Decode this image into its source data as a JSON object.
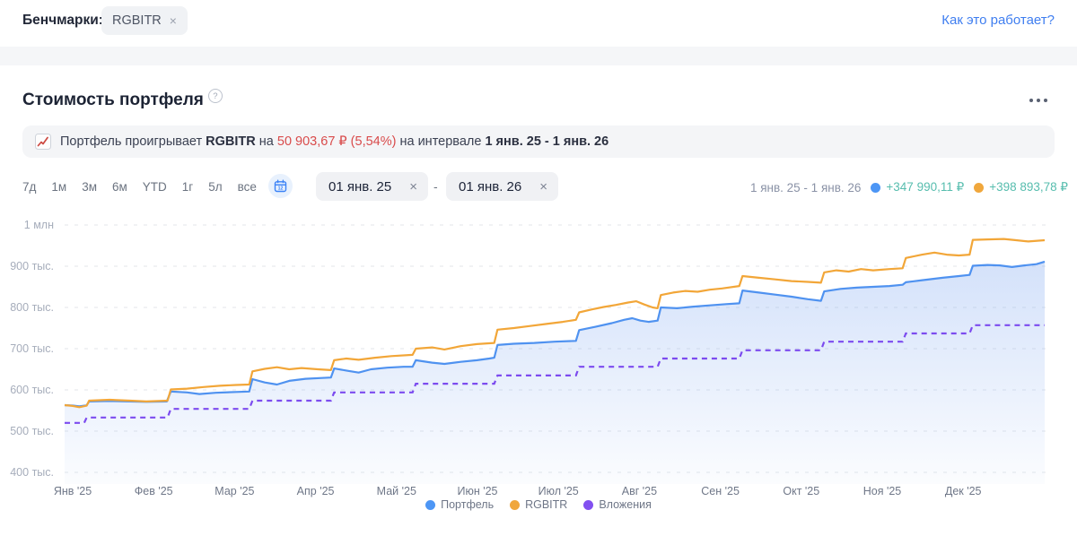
{
  "header": {
    "benchmarks_label": "Бенчмарки:",
    "benchmark_chip": "RGBITR",
    "close_glyph": "×",
    "help_link": "Как это работает?"
  },
  "section": {
    "title": "Стоимость портфеля",
    "help_icon_glyph": "?"
  },
  "banner": {
    "icon": "chart-line-down-icon",
    "parts": [
      {
        "text": "Портфель проигрывает ",
        "style": "normal"
      },
      {
        "text": "RGBITR",
        "style": "bold"
      },
      {
        "text": " на ",
        "style": "normal"
      },
      {
        "text": "50 903,67 ₽ (5,54%)",
        "style": "loss"
      },
      {
        "text": " на интервале ",
        "style": "normal"
      },
      {
        "text": "1 янв. 25 - 1 янв. 26",
        "style": "bold"
      }
    ]
  },
  "controls": {
    "presets": [
      {
        "key": "7d",
        "label": "7д"
      },
      {
        "key": "1m",
        "label": "1м"
      },
      {
        "key": "3m",
        "label": "3м"
      },
      {
        "key": "6m",
        "label": "6м"
      },
      {
        "key": "ytd",
        "label": "YTD"
      },
      {
        "key": "1y",
        "label": "1г"
      },
      {
        "key": "5y",
        "label": "5л"
      },
      {
        "key": "all",
        "label": "все"
      }
    ],
    "date_from": "01 янв. 25",
    "date_to": "01 янв. 26",
    "separator": "-"
  },
  "summary": {
    "interval": "1 янв. 25 - 1 янв. 26",
    "items": [
      {
        "key": "portfolio",
        "color": "#4d96f5",
        "value": "+347 990,11 ₽"
      },
      {
        "key": "rgbitr",
        "color": "#f0a73c",
        "value": "+398 893,78 ₽"
      }
    ]
  },
  "chart_data": {
    "type": "line",
    "title": "Стоимость портфеля",
    "x_unit": "months from 1 Jan 2025 (0 = 1 янв. 25, 12 = 1 янв. 26)",
    "value_unit": "thousands of rubles",
    "x_ticks": [
      "Янв '25",
      "Фев '25",
      "Мар '25",
      "Апр '25",
      "Май '25",
      "Июн '25",
      "Июл '25",
      "Авг '25",
      "Сен '25",
      "Окт '25",
      "Ноя '25",
      "Дек '25"
    ],
    "y_ticks": [
      "1 млн",
      "900 тыс.",
      "800 тыс.",
      "700 тыс.",
      "600 тыс.",
      "500 тыс.",
      "400 тыс."
    ],
    "y_tick_values_rub": [
      1000000,
      900000,
      800000,
      700000,
      600000,
      500000,
      400000
    ],
    "grid": "horizontal-dashed",
    "legend_position": "bottom-center",
    "series": [
      {
        "key": "portfolio",
        "name": "Портфель",
        "color": "#4f92f0",
        "style": "solid",
        "fill": true,
        "points": [
          [
            0,
            563
          ],
          [
            0.1,
            562
          ],
          [
            0.18,
            560
          ],
          [
            0.25,
            562
          ],
          [
            0.27,
            563
          ],
          [
            0.3,
            572
          ],
          [
            0.55,
            573
          ],
          [
            0.8,
            572
          ],
          [
            1.0,
            571
          ],
          [
            1.25,
            572
          ],
          [
            1.3,
            596
          ],
          [
            1.5,
            594
          ],
          [
            1.65,
            590
          ],
          [
            1.85,
            593
          ],
          [
            2.1,
            595
          ],
          [
            2.26,
            596
          ],
          [
            2.3,
            626
          ],
          [
            2.45,
            618
          ],
          [
            2.6,
            613
          ],
          [
            2.75,
            622
          ],
          [
            2.95,
            627
          ],
          [
            3.15,
            629
          ],
          [
            3.26,
            630
          ],
          [
            3.3,
            652
          ],
          [
            3.45,
            647
          ],
          [
            3.6,
            642
          ],
          [
            3.75,
            650
          ],
          [
            3.95,
            654
          ],
          [
            4.15,
            656
          ],
          [
            4.26,
            656
          ],
          [
            4.3,
            672
          ],
          [
            4.5,
            666
          ],
          [
            4.65,
            663
          ],
          [
            4.85,
            668
          ],
          [
            5.05,
            672
          ],
          [
            5.2,
            676
          ],
          [
            5.26,
            678
          ],
          [
            5.3,
            709
          ],
          [
            5.5,
            712
          ],
          [
            5.75,
            714
          ],
          [
            6.0,
            717
          ],
          [
            6.26,
            719
          ],
          [
            6.3,
            745
          ],
          [
            6.5,
            753
          ],
          [
            6.7,
            762
          ],
          [
            6.85,
            770
          ],
          [
            6.95,
            774
          ],
          [
            7.05,
            768
          ],
          [
            7.15,
            765
          ],
          [
            7.26,
            768
          ],
          [
            7.3,
            800
          ],
          [
            7.5,
            798
          ],
          [
            7.7,
            802
          ],
          [
            7.9,
            805
          ],
          [
            8.1,
            808
          ],
          [
            8.26,
            810
          ],
          [
            8.3,
            841
          ],
          [
            8.5,
            836
          ],
          [
            8.7,
            831
          ],
          [
            8.9,
            826
          ],
          [
            9.1,
            820
          ],
          [
            9.26,
            816
          ],
          [
            9.3,
            839
          ],
          [
            9.5,
            845
          ],
          [
            9.7,
            848
          ],
          [
            9.9,
            850
          ],
          [
            10.1,
            852
          ],
          [
            10.26,
            855
          ],
          [
            10.3,
            861
          ],
          [
            10.5,
            866
          ],
          [
            10.75,
            872
          ],
          [
            10.95,
            876
          ],
          [
            11.08,
            879
          ],
          [
            11.12,
            901
          ],
          [
            11.3,
            903
          ],
          [
            11.45,
            902
          ],
          [
            11.6,
            898
          ],
          [
            11.75,
            902
          ],
          [
            11.9,
            905
          ],
          [
            12,
            911
          ]
        ]
      },
      {
        "key": "rgbitr",
        "name": "RGBITR",
        "color": "#f2a638",
        "style": "solid",
        "fill": false,
        "points": [
          [
            0,
            563
          ],
          [
            0.1,
            561
          ],
          [
            0.18,
            558
          ],
          [
            0.25,
            561
          ],
          [
            0.27,
            562
          ],
          [
            0.3,
            574
          ],
          [
            0.55,
            576
          ],
          [
            0.8,
            574
          ],
          [
            1.0,
            572
          ],
          [
            1.26,
            574
          ],
          [
            1.3,
            601
          ],
          [
            1.5,
            603
          ],
          [
            1.7,
            607
          ],
          [
            1.9,
            610
          ],
          [
            2.1,
            612
          ],
          [
            2.26,
            613
          ],
          [
            2.3,
            645
          ],
          [
            2.45,
            651
          ],
          [
            2.6,
            655
          ],
          [
            2.75,
            650
          ],
          [
            2.9,
            653
          ],
          [
            3.1,
            650
          ],
          [
            3.26,
            648
          ],
          [
            3.3,
            672
          ],
          [
            3.45,
            676
          ],
          [
            3.6,
            673
          ],
          [
            3.8,
            678
          ],
          [
            4.0,
            682
          ],
          [
            4.26,
            685
          ],
          [
            4.3,
            700
          ],
          [
            4.5,
            703
          ],
          [
            4.65,
            698
          ],
          [
            4.85,
            706
          ],
          [
            5.05,
            711
          ],
          [
            5.26,
            714
          ],
          [
            5.3,
            746
          ],
          [
            5.5,
            750
          ],
          [
            5.7,
            755
          ],
          [
            5.9,
            760
          ],
          [
            6.1,
            765
          ],
          [
            6.26,
            770
          ],
          [
            6.3,
            788
          ],
          [
            6.45,
            795
          ],
          [
            6.6,
            801
          ],
          [
            6.75,
            806
          ],
          [
            6.9,
            812
          ],
          [
            7.0,
            815
          ],
          [
            7.1,
            807
          ],
          [
            7.2,
            800
          ],
          [
            7.26,
            798
          ],
          [
            7.3,
            830
          ],
          [
            7.45,
            836
          ],
          [
            7.6,
            840
          ],
          [
            7.75,
            838
          ],
          [
            7.9,
            843
          ],
          [
            8.05,
            846
          ],
          [
            8.26,
            852
          ],
          [
            8.3,
            876
          ],
          [
            8.5,
            872
          ],
          [
            8.7,
            868
          ],
          [
            8.9,
            864
          ],
          [
            9.1,
            862
          ],
          [
            9.26,
            860
          ],
          [
            9.3,
            885
          ],
          [
            9.45,
            890
          ],
          [
            9.6,
            887
          ],
          [
            9.75,
            893
          ],
          [
            9.9,
            890
          ],
          [
            10.1,
            893
          ],
          [
            10.26,
            895
          ],
          [
            10.3,
            920
          ],
          [
            10.5,
            928
          ],
          [
            10.65,
            933
          ],
          [
            10.8,
            928
          ],
          [
            10.95,
            926
          ],
          [
            11.08,
            928
          ],
          [
            11.12,
            964
          ],
          [
            11.3,
            965
          ],
          [
            11.5,
            966
          ],
          [
            11.65,
            963
          ],
          [
            11.8,
            960
          ],
          [
            12,
            963
          ]
        ]
      },
      {
        "key": "contributions",
        "name": "Вложения",
        "color": "#7c4bef",
        "style": "dashed",
        "fill": false,
        "points": [
          [
            0,
            520
          ],
          [
            0.24,
            520
          ],
          [
            0.27,
            533
          ],
          [
            1.26,
            533
          ],
          [
            1.3,
            554
          ],
          [
            2.26,
            554
          ],
          [
            2.3,
            574
          ],
          [
            3.26,
            574
          ],
          [
            3.3,
            594
          ],
          [
            4.26,
            594
          ],
          [
            4.3,
            615
          ],
          [
            5.26,
            615
          ],
          [
            5.3,
            635
          ],
          [
            6.26,
            635
          ],
          [
            6.3,
            656
          ],
          [
            7.26,
            656
          ],
          [
            7.3,
            676
          ],
          [
            8.26,
            676
          ],
          [
            8.3,
            696
          ],
          [
            9.26,
            696
          ],
          [
            9.3,
            717
          ],
          [
            10.26,
            717
          ],
          [
            10.3,
            737
          ],
          [
            11.08,
            737
          ],
          [
            11.12,
            757
          ],
          [
            12,
            757
          ]
        ]
      }
    ]
  }
}
